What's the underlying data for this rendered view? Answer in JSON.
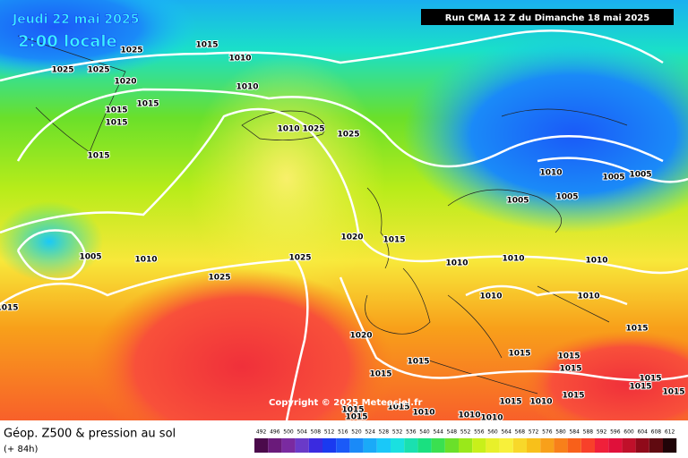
{
  "header": {
    "date": "Jeudi 22 mai 2025",
    "time": "2:00 locale",
    "run": "Run CMA 12 Z du Dimanche 18 mai 2025"
  },
  "copyright": "Copyright © 2025 Meteociel.fr",
  "footer": {
    "title": "Géop. Z500 & pression au sol",
    "lead": "(+ 84h)"
  },
  "isobar_labels": [
    1025,
    1015,
    1010,
    1025,
    1025,
    1020,
    1010,
    1015,
    1015,
    1015,
    1010,
    1025,
    1025,
    1015,
    1010,
    1005,
    1005,
    1005,
    1005,
    1020,
    1015,
    1005,
    1010,
    1025,
    1010,
    1010,
    1010,
    1025,
    1010,
    1010,
    1015,
    1015,
    1020,
    1015,
    1015,
    1015,
    1015,
    1015,
    1015,
    1015,
    1015,
    1015,
    1015,
    1010,
    1015,
    1010,
    1010,
    1010,
    1015,
    1015
  ],
  "colorbar": {
    "labels": [
      492,
      496,
      500,
      504,
      508,
      512,
      516,
      520,
      524,
      528,
      532,
      536,
      540,
      544,
      548,
      552,
      556,
      560,
      564,
      568,
      572,
      576,
      580,
      584,
      588,
      592,
      596,
      600,
      604,
      608,
      612
    ],
    "colors": [
      "#4b0a4b",
      "#6a1a7a",
      "#7a2aa0",
      "#6a3ac8",
      "#3a2ae0",
      "#1a3af0",
      "#1a5af8",
      "#1a8af8",
      "#1aaaf8",
      "#1ac8f8",
      "#1ae0e0",
      "#1ae0b0",
      "#1ae080",
      "#3ae050",
      "#6ae02a",
      "#9ae81a",
      "#c8f01a",
      "#e8f02a",
      "#f8f03a",
      "#f8d82a",
      "#f8c01a",
      "#f8a01a",
      "#f8801a",
      "#f8601a",
      "#f8402a",
      "#f0203a",
      "#e0103a",
      "#c0102a",
      "#900a1a",
      "#600a10",
      "#200408"
    ]
  }
}
